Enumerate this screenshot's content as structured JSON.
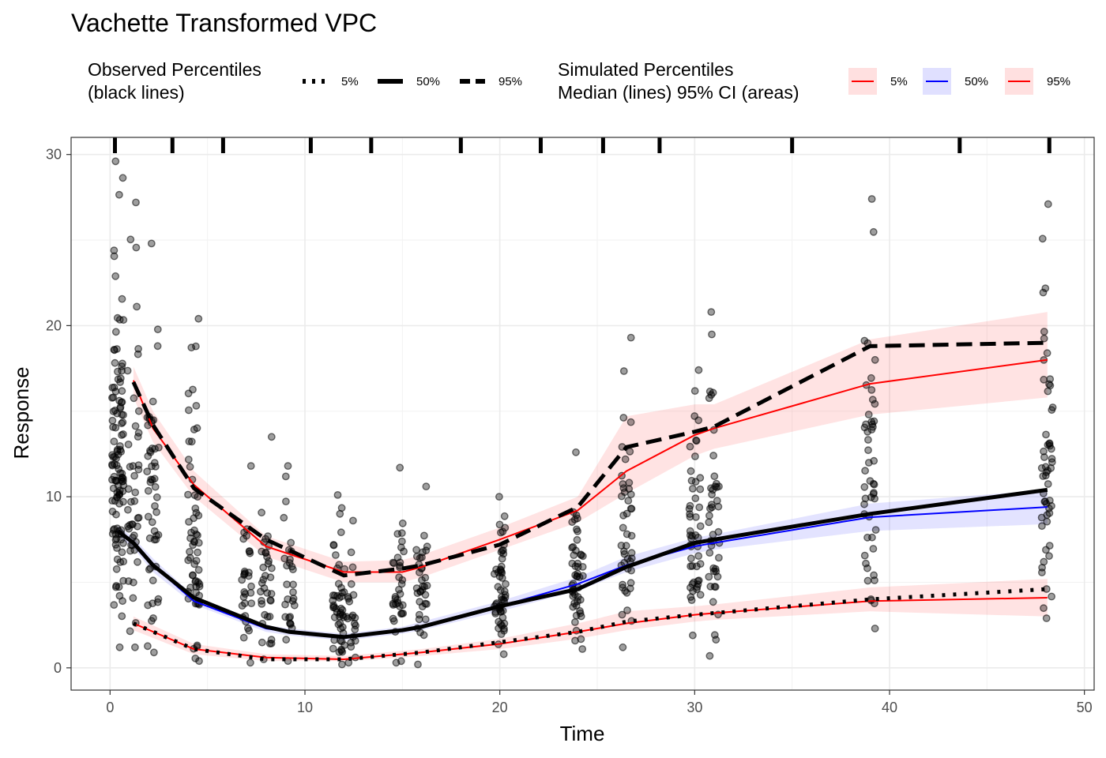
{
  "chart_data": {
    "type": "line",
    "title": "Vachette Transformed VPC",
    "xlabel": "Time",
    "ylabel": "Response",
    "xlim": [
      -2,
      50.5
    ],
    "ylim": [
      -1.3,
      31
    ],
    "x_ticks": [
      0,
      10,
      20,
      30,
      40,
      50
    ],
    "y_ticks": [
      0,
      10,
      20,
      30
    ],
    "grid": true,
    "legend_placement": "top",
    "legend_observed": {
      "title_line1": "Observed Percentiles",
      "title_line2": "(black lines)",
      "items": [
        {
          "label": "5%",
          "linetype": "dotted"
        },
        {
          "label": "50%",
          "linetype": "solid"
        },
        {
          "label": "95%",
          "linetype": "dashed"
        }
      ]
    },
    "legend_simulated": {
      "title_line1": "Simulated Percentiles",
      "title_line2": "Median (lines) 95% CI (areas)",
      "items": [
        {
          "label": "5%",
          "line_color": "#ff0000",
          "fill_color": "#ffe0e0"
        },
        {
          "label": "50%",
          "line_color": "#0000ff",
          "fill_color": "#e0e0ff"
        },
        {
          "label": "95%",
          "line_color": "#ff0000",
          "fill_color": "#ffe0e0"
        }
      ]
    },
    "bin_edges": [
      0.25,
      3.2,
      5.8,
      10.3,
      13.4,
      18,
      22.1,
      25.3,
      28.2,
      35,
      43.6,
      48.2
    ],
    "observed": {
      "p5": {
        "x": [
          1.2,
          4.3,
          8,
          12,
          15,
          16,
          20,
          24,
          26.5,
          30,
          31,
          39,
          48.1
        ],
        "y": [
          2.6,
          1.1,
          0.5,
          0.5,
          0.8,
          0.9,
          1.5,
          2.1,
          2.7,
          3.1,
          3.2,
          4.0,
          4.6
        ]
      },
      "p50": {
        "x": [
          0.4,
          1.2,
          2.2,
          4.3,
          8,
          9.2,
          12,
          15,
          16,
          20,
          24,
          26.5,
          28.5,
          30,
          31,
          39,
          48.1
        ],
        "y": [
          8.0,
          7.3,
          6.0,
          4.1,
          2.4,
          2.1,
          1.8,
          2.2,
          2.4,
          3.6,
          4.6,
          5.9,
          6.7,
          7.3,
          7.5,
          9.0,
          10.4
        ]
      },
      "p95": {
        "x": [
          1.2,
          2.2,
          4.3,
          8,
          12,
          15,
          16,
          20,
          24,
          26.5,
          30,
          31,
          39,
          48.1
        ],
        "y": [
          16.7,
          14.2,
          10.5,
          7.5,
          5.4,
          5.8,
          6.0,
          7.2,
          9.4,
          12.9,
          13.8,
          14.1,
          18.8,
          19.0
        ]
      }
    },
    "simulated": {
      "p5": {
        "x": [
          1.2,
          4.3,
          8,
          12,
          15,
          16,
          20,
          24,
          26.5,
          30,
          31,
          39,
          48.1
        ],
        "y": [
          2.6,
          1.1,
          0.6,
          0.5,
          0.8,
          0.9,
          1.4,
          2.1,
          2.6,
          3.1,
          3.2,
          3.9,
          4.1
        ]
      },
      "p50": {
        "x": [
          0.4,
          1.2,
          2.2,
          4.3,
          8,
          9.2,
          12,
          15,
          16,
          20,
          24,
          26.5,
          30,
          31,
          39,
          48.1
        ],
        "y": [
          8.0,
          7.3,
          6.0,
          3.9,
          2.3,
          2.1,
          1.8,
          2.2,
          2.4,
          3.6,
          4.9,
          6.0,
          7.1,
          7.3,
          8.8,
          9.4
        ]
      },
      "p95": {
        "x": [
          1.2,
          2.2,
          4.3,
          8,
          12,
          15,
          16,
          20,
          24,
          26.5,
          30,
          31,
          39,
          48.1
        ],
        "y": [
          16.8,
          14.0,
          10.7,
          7.1,
          5.6,
          5.6,
          5.9,
          7.5,
          9.2,
          11.5,
          13.6,
          14.0,
          16.6,
          18.0
        ]
      },
      "ci_p5": {
        "x": [
          1.2,
          4.3,
          8,
          12,
          15,
          16,
          20,
          24,
          26.5,
          30,
          31,
          39,
          48.1
        ],
        "lo": [
          2.2,
          0.8,
          0.4,
          0.4,
          0.6,
          0.7,
          1.1,
          1.7,
          2.2,
          2.7,
          2.8,
          3.3,
          3.0
        ],
        "hi": [
          3.0,
          1.4,
          0.8,
          0.7,
          1.0,
          1.1,
          1.7,
          2.6,
          3.3,
          3.6,
          3.7,
          4.7,
          5.2
        ]
      },
      "ci_p50": {
        "x": [
          0.4,
          1.2,
          2.2,
          4.3,
          8,
          9.2,
          12,
          15,
          16,
          20,
          24,
          26.5,
          30,
          31,
          39,
          48.1
        ],
        "lo": [
          7.7,
          7.0,
          5.6,
          3.7,
          2.1,
          1.9,
          1.6,
          2.0,
          2.2,
          3.3,
          4.5,
          5.6,
          6.7,
          6.9,
          8.0,
          8.4
        ],
        "hi": [
          8.3,
          7.6,
          6.4,
          4.2,
          2.5,
          2.3,
          2.0,
          2.4,
          2.7,
          3.9,
          5.3,
          6.5,
          7.6,
          7.8,
          9.6,
          10.4
        ]
      },
      "ci_p95": {
        "x": [
          1.2,
          2.2,
          4.3,
          8,
          12,
          15,
          16,
          20,
          24,
          26.5,
          30,
          31,
          39,
          48.1
        ],
        "lo": [
          15.8,
          13.2,
          10.0,
          6.5,
          5.0,
          5.0,
          5.3,
          6.9,
          8.5,
          10.2,
          12.4,
          12.8,
          14.8,
          15.8
        ],
        "hi": [
          17.6,
          15.0,
          11.5,
          7.7,
          6.2,
          6.3,
          6.6,
          8.2,
          10.0,
          14.7,
          15.4,
          15.4,
          19.2,
          20.8
        ]
      }
    },
    "observations": {
      "clusters": [
        {
          "x": 0.4,
          "y_min": 1.2,
          "y_max": 29.6,
          "n": 120
        },
        {
          "x": 1.2,
          "y_min": 1.2,
          "y_max": 27.2,
          "n": 45
        },
        {
          "x": 2.2,
          "y_min": 0.9,
          "y_max": 24.8,
          "n": 50
        },
        {
          "x": 4.3,
          "y_min": 0.4,
          "y_max": 20.4,
          "n": 60
        },
        {
          "x": 7,
          "y_min": 0.3,
          "y_max": 11.8,
          "n": 30
        },
        {
          "x": 8,
          "y_min": 0.5,
          "y_max": 13.5,
          "n": 35
        },
        {
          "x": 9.2,
          "y_min": 0.4,
          "y_max": 11.8,
          "n": 30
        },
        {
          "x": 11.7,
          "y_min": 0.2,
          "y_max": 10.1,
          "n": 45
        },
        {
          "x": 12.3,
          "y_min": 0.3,
          "y_max": 8.6,
          "n": 25
        },
        {
          "x": 14.8,
          "y_min": 0.3,
          "y_max": 11.7,
          "n": 35
        },
        {
          "x": 16,
          "y_min": 0.2,
          "y_max": 10.6,
          "n": 35
        },
        {
          "x": 20,
          "y_min": 0.8,
          "y_max": 10.0,
          "n": 55
        },
        {
          "x": 24,
          "y_min": 1.1,
          "y_max": 12.6,
          "n": 50
        },
        {
          "x": 26.5,
          "y_min": 1.2,
          "y_max": 19.3,
          "n": 45
        },
        {
          "x": 30,
          "y_min": 1.9,
          "y_max": 17.4,
          "n": 50
        },
        {
          "x": 31,
          "y_min": 0.7,
          "y_max": 20.8,
          "n": 45
        },
        {
          "x": 39,
          "y_min": 2.3,
          "y_max": 27.4,
          "n": 50
        },
        {
          "x": 48.1,
          "y_min": 2.9,
          "y_max": 27.1,
          "n": 55
        }
      ]
    }
  },
  "colors": {
    "observed_line": "#000000",
    "sim_p5_p95_line": "#ff0000",
    "sim_p50_line": "#0000ff",
    "ci_p5_p95_fill": "#ff0000",
    "ci_p50_fill": "#0000ff",
    "points": "#000000"
  }
}
